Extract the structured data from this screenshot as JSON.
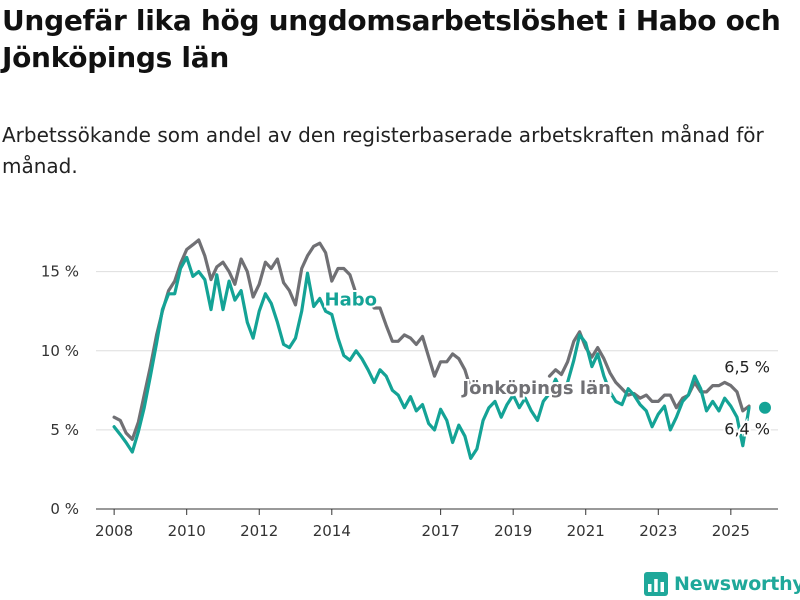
{
  "title": "Ungefär lika hög ungdomsarbetslöshet i Habo och Jönköpings län",
  "subtitle": "Arbetssökande som andel av den registerbaserade arbetskraften månad för månad.",
  "brand": {
    "name": "Newsworthy",
    "logo_icon": "bar-chart-logo-icon"
  },
  "colors": {
    "habo": "#14a396",
    "lan": "#707074",
    "grid": "#dedede",
    "axis": "#333333"
  },
  "chart_data": {
    "type": "line",
    "title": "Ungefär lika hög ungdomsarbetslöshet i Habo och Jönköpings län",
    "subtitle": "Arbetssökande som andel av den registerbaserade arbetskraften månad för månad.",
    "xlabel": "",
    "ylabel": "",
    "x_ticks": [
      "2008",
      "2010",
      "2012",
      "2014",
      "2017",
      "2019",
      "2021",
      "2023",
      "2025"
    ],
    "y_ticks": [
      "0 %",
      "5 %",
      "10 %",
      "15 %"
    ],
    "ylim": [
      0,
      17
    ],
    "xlim": [
      2007.5,
      2026.3
    ],
    "grid": true,
    "series": [
      {
        "name": "Jönköpings län",
        "color": "#707074",
        "end_label": "6,5 %",
        "points": [
          [
            2008.0,
            5.8
          ],
          [
            2008.17,
            5.6
          ],
          [
            2008.33,
            4.8
          ],
          [
            2008.5,
            4.4
          ],
          [
            2008.67,
            5.5
          ],
          [
            2008.83,
            7.2
          ],
          [
            2009.0,
            9.0
          ],
          [
            2009.17,
            11.0
          ],
          [
            2009.33,
            12.5
          ],
          [
            2009.5,
            13.8
          ],
          [
            2009.67,
            14.4
          ],
          [
            2009.83,
            15.5
          ],
          [
            2010.0,
            16.4
          ],
          [
            2010.17,
            16.7
          ],
          [
            2010.33,
            17.0
          ],
          [
            2010.5,
            16.0
          ],
          [
            2010.67,
            14.5
          ],
          [
            2010.83,
            15.3
          ],
          [
            2011.0,
            15.6
          ],
          [
            2011.17,
            15.0
          ],
          [
            2011.33,
            14.2
          ],
          [
            2011.5,
            15.8
          ],
          [
            2011.67,
            15.0
          ],
          [
            2011.83,
            13.4
          ],
          [
            2012.0,
            14.2
          ],
          [
            2012.17,
            15.6
          ],
          [
            2012.33,
            15.2
          ],
          [
            2012.5,
            15.8
          ],
          [
            2012.67,
            14.3
          ],
          [
            2012.83,
            13.8
          ],
          [
            2013.0,
            12.9
          ],
          [
            2013.17,
            15.2
          ],
          [
            2013.33,
            16.0
          ],
          [
            2013.5,
            16.6
          ],
          [
            2013.67,
            16.8
          ],
          [
            2013.83,
            16.2
          ],
          [
            2014.0,
            14.4
          ],
          [
            2014.17,
            15.2
          ],
          [
            2014.33,
            15.2
          ],
          [
            2014.5,
            14.8
          ],
          [
            2014.67,
            13.6
          ],
          [
            2014.83,
            13.0
          ],
          [
            2015.0,
            13.2
          ],
          [
            2015.17,
            12.7
          ],
          [
            2015.33,
            12.7
          ],
          [
            2015.5,
            11.6
          ],
          [
            2015.67,
            10.6
          ],
          [
            2015.83,
            10.6
          ],
          [
            2016.0,
            11.0
          ],
          [
            2016.17,
            10.8
          ],
          [
            2016.33,
            10.4
          ],
          [
            2016.5,
            10.9
          ],
          [
            2016.67,
            9.6
          ],
          [
            2016.83,
            8.4
          ],
          [
            2017.0,
            9.3
          ],
          [
            2017.17,
            9.3
          ],
          [
            2017.33,
            9.8
          ],
          [
            2017.5,
            9.5
          ],
          [
            2017.67,
            8.8
          ],
          [
            2017.83,
            7.6
          ]
        ]
      },
      {
        "name": "Habo",
        "color": "#14a396",
        "end_label": "6,4 %",
        "points": [
          [
            2008.0,
            5.2
          ],
          [
            2008.17,
            4.7
          ],
          [
            2008.33,
            4.2
          ],
          [
            2008.5,
            3.6
          ],
          [
            2008.67,
            4.9
          ],
          [
            2008.83,
            6.4
          ],
          [
            2009.0,
            8.4
          ],
          [
            2009.17,
            10.5
          ],
          [
            2009.33,
            12.6
          ],
          [
            2009.5,
            13.6
          ],
          [
            2009.67,
            13.6
          ],
          [
            2009.83,
            15.2
          ],
          [
            2010.0,
            15.9
          ],
          [
            2010.17,
            14.7
          ],
          [
            2010.33,
            15.0
          ],
          [
            2010.5,
            14.5
          ],
          [
            2010.67,
            12.6
          ],
          [
            2010.83,
            14.8
          ],
          [
            2011.0,
            12.6
          ],
          [
            2011.17,
            14.4
          ],
          [
            2011.33,
            13.2
          ],
          [
            2011.5,
            13.8
          ],
          [
            2011.67,
            11.8
          ],
          [
            2011.83,
            10.8
          ],
          [
            2012.0,
            12.5
          ],
          [
            2012.17,
            13.6
          ],
          [
            2012.33,
            13.0
          ],
          [
            2012.5,
            11.8
          ],
          [
            2012.67,
            10.4
          ],
          [
            2012.83,
            10.2
          ],
          [
            2013.0,
            10.8
          ],
          [
            2013.17,
            12.5
          ],
          [
            2013.33,
            14.9
          ],
          [
            2013.5,
            12.8
          ],
          [
            2013.67,
            13.3
          ],
          [
            2013.83,
            12.5
          ],
          [
            2014.0,
            12.3
          ],
          [
            2014.17,
            10.8
          ],
          [
            2014.33,
            9.7
          ],
          [
            2014.5,
            9.4
          ],
          [
            2014.67,
            10.0
          ],
          [
            2014.83,
            9.5
          ],
          [
            2015.0,
            8.8
          ],
          [
            2015.17,
            8.0
          ],
          [
            2015.33,
            8.8
          ],
          [
            2015.5,
            8.4
          ],
          [
            2015.67,
            7.5
          ],
          [
            2015.83,
            7.2
          ],
          [
            2016.0,
            6.4
          ],
          [
            2016.17,
            7.1
          ],
          [
            2016.33,
            6.2
          ],
          [
            2016.5,
            6.6
          ],
          [
            2016.67,
            5.4
          ],
          [
            2016.83,
            5.0
          ],
          [
            2017.0,
            6.3
          ],
          [
            2017.17,
            5.6
          ],
          [
            2017.33,
            4.2
          ],
          [
            2017.5,
            5.3
          ],
          [
            2017.67,
            4.6
          ],
          [
            2017.83,
            3.2
          ],
          [
            2018.0,
            3.8
          ],
          [
            2018.17,
            5.6
          ],
          [
            2018.33,
            6.4
          ],
          [
            2018.5,
            6.8
          ],
          [
            2018.67,
            5.8
          ],
          [
            2018.83,
            6.6
          ],
          [
            2019.0,
            7.2
          ],
          [
            2019.17,
            6.4
          ],
          [
            2019.33,
            7.0
          ],
          [
            2019.5,
            6.2
          ],
          [
            2019.67,
            5.6
          ],
          [
            2019.83,
            6.8
          ],
          [
            2020.0,
            7.3
          ],
          [
            2020.17,
            8.2
          ],
          [
            2020.33,
            7.4
          ],
          [
            2020.5,
            8.0
          ],
          [
            2020.67,
            9.4
          ],
          [
            2020.83,
            11.0
          ],
          [
            2021.0,
            10.5
          ],
          [
            2021.17,
            9.0
          ],
          [
            2021.33,
            9.8
          ],
          [
            2021.5,
            8.4
          ],
          [
            2021.67,
            7.4
          ],
          [
            2021.83,
            6.8
          ],
          [
            2022.0,
            6.6
          ],
          [
            2022.17,
            7.6
          ],
          [
            2022.33,
            7.2
          ],
          [
            2022.5,
            6.6
          ],
          [
            2022.67,
            6.2
          ],
          [
            2022.83,
            5.2
          ],
          [
            2023.0,
            6.0
          ],
          [
            2023.17,
            6.5
          ],
          [
            2023.33,
            5.0
          ],
          [
            2023.5,
            5.8
          ],
          [
            2023.67,
            6.8
          ],
          [
            2023.83,
            7.2
          ],
          [
            2024.0,
            8.4
          ],
          [
            2024.17,
            7.6
          ],
          [
            2024.33,
            6.2
          ],
          [
            2024.5,
            6.8
          ],
          [
            2024.67,
            6.2
          ],
          [
            2024.83,
            7.0
          ],
          [
            2025.0,
            6.5
          ],
          [
            2025.17,
            5.8
          ],
          [
            2025.33,
            4.0
          ],
          [
            2025.5,
            6.4
          ]
        ]
      },
      {
        "name": "Jönköpings län",
        "color": "#707074",
        "points": [
          [
            2020.0,
            8.4
          ],
          [
            2020.17,
            8.8
          ],
          [
            2020.33,
            8.5
          ],
          [
            2020.5,
            9.3
          ],
          [
            2020.67,
            10.6
          ],
          [
            2020.83,
            11.2
          ],
          [
            2021.0,
            10.2
          ],
          [
            2021.17,
            9.6
          ],
          [
            2021.33,
            10.2
          ],
          [
            2021.5,
            9.5
          ],
          [
            2021.67,
            8.6
          ],
          [
            2021.83,
            8.0
          ],
          [
            2022.0,
            7.6
          ],
          [
            2022.17,
            7.2
          ],
          [
            2022.33,
            7.3
          ],
          [
            2022.5,
            7.0
          ],
          [
            2022.67,
            7.2
          ],
          [
            2022.83,
            6.8
          ],
          [
            2023.0,
            6.8
          ],
          [
            2023.17,
            7.2
          ],
          [
            2023.33,
            7.2
          ],
          [
            2023.5,
            6.4
          ],
          [
            2023.67,
            7.0
          ],
          [
            2023.83,
            7.2
          ],
          [
            2024.0,
            8.0
          ],
          [
            2024.17,
            7.4
          ],
          [
            2024.33,
            7.4
          ],
          [
            2024.5,
            7.8
          ],
          [
            2024.67,
            7.8
          ],
          [
            2024.83,
            8.0
          ],
          [
            2025.0,
            7.8
          ],
          [
            2025.17,
            7.4
          ],
          [
            2025.33,
            6.2
          ],
          [
            2025.5,
            6.5
          ]
        ]
      }
    ],
    "annotations": [
      {
        "text": "Habo",
        "series": "Habo",
        "x": 2013.8,
        "y": 13.3
      },
      {
        "text": "Jönköpings län",
        "series": "Jönköpings län",
        "x": 2017.6,
        "y": 7.7
      }
    ]
  }
}
